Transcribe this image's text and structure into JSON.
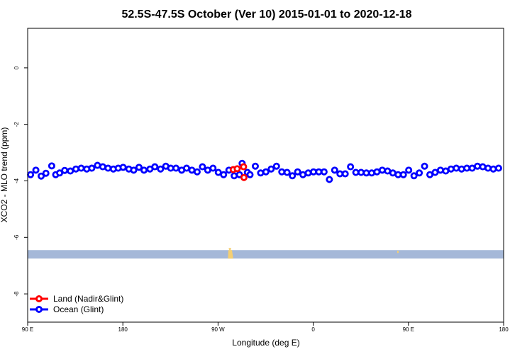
{
  "chart_data": {
    "type": "scatter",
    "title": "52.5S-47.5S October (Ver 10)   2015-01-01 to 2020-12-18",
    "xlabel": "Longitude (deg E)",
    "ylabel": "XCO2 - MLO trend (ppm)",
    "xlim": [
      90,
      450
    ],
    "ylim": [
      -9,
      1.4
    ],
    "x_ticks": [
      {
        "value": 90,
        "label": "90 E"
      },
      {
        "value": 162,
        "label": "180"
      },
      {
        "value": 234,
        "label": "90 W"
      },
      {
        "value": 306,
        "label": "0"
      },
      {
        "value": 378,
        "label": "90 E"
      },
      {
        "value": 450,
        "label": "180"
      }
    ],
    "y_ticks": [
      {
        "value": 0,
        "label": "0"
      },
      {
        "value": -2,
        "label": "-2"
      },
      {
        "value": -4,
        "label": "-4"
      },
      {
        "value": -6,
        "label": "-6"
      },
      {
        "value": -8,
        "label": "-8"
      }
    ],
    "grid": false,
    "legend_position": "bottom-left",
    "series": [
      {
        "name": "Land (Nadir&Glint)",
        "color": "#ff0000",
        "points": [
          [
            245.5,
            -3.6
          ],
          [
            248.5,
            -3.57
          ],
          [
            253.3,
            -3.5
          ],
          [
            253.6,
            -3.88
          ]
        ]
      },
      {
        "name": "Ocean (Glint)",
        "color": "#0000ff",
        "points": [
          [
            92.2,
            -3.78
          ],
          [
            96.2,
            -3.62
          ],
          [
            100.2,
            -3.83
          ],
          [
            103.8,
            -3.73
          ],
          [
            108.2,
            -3.47
          ],
          [
            111.2,
            -3.78
          ],
          [
            114.2,
            -3.72
          ],
          [
            118.0,
            -3.63
          ],
          [
            122.3,
            -3.65
          ],
          [
            126.5,
            -3.58
          ],
          [
            130.5,
            -3.55
          ],
          [
            134.7,
            -3.58
          ],
          [
            138.5,
            -3.55
          ],
          [
            142.8,
            -3.45
          ],
          [
            146.8,
            -3.5
          ],
          [
            150.8,
            -3.55
          ],
          [
            154.8,
            -3.58
          ],
          [
            158.5,
            -3.55
          ],
          [
            162.2,
            -3.52
          ],
          [
            166.5,
            -3.58
          ],
          [
            170.2,
            -3.62
          ],
          [
            174.2,
            -3.52
          ],
          [
            178.0,
            -3.62
          ],
          [
            182.5,
            -3.58
          ],
          [
            186.2,
            -3.5
          ],
          [
            190.5,
            -3.58
          ],
          [
            194.5,
            -3.48
          ],
          [
            198.2,
            -3.55
          ],
          [
            202.2,
            -3.55
          ],
          [
            206.5,
            -3.62
          ],
          [
            210.2,
            -3.55
          ],
          [
            214.2,
            -3.62
          ],
          [
            218.2,
            -3.68
          ],
          [
            222.2,
            -3.5
          ],
          [
            226.2,
            -3.62
          ],
          [
            230.2,
            -3.55
          ],
          [
            234.2,
            -3.7
          ],
          [
            238.2,
            -3.78
          ],
          [
            242.2,
            -3.62
          ],
          [
            246.2,
            -3.82
          ],
          [
            250.2,
            -3.78
          ],
          [
            252.2,
            -3.38
          ],
          [
            256.2,
            -3.7
          ],
          [
            258.2,
            -3.78
          ],
          [
            262.2,
            -3.48
          ],
          [
            266.2,
            -3.72
          ],
          [
            270.2,
            -3.68
          ],
          [
            274.2,
            -3.58
          ],
          [
            278.2,
            -3.48
          ],
          [
            282.2,
            -3.68
          ],
          [
            286.2,
            -3.7
          ],
          [
            290.2,
            -3.82
          ],
          [
            294.2,
            -3.68
          ],
          [
            298.2,
            -3.78
          ],
          [
            302.2,
            -3.72
          ],
          [
            306.2,
            -3.68
          ],
          [
            310.2,
            -3.68
          ],
          [
            314.2,
            -3.68
          ],
          [
            318.2,
            -3.95
          ],
          [
            322.2,
            -3.62
          ],
          [
            326.2,
            -3.75
          ],
          [
            330.2,
            -3.75
          ],
          [
            334.2,
            -3.5
          ],
          [
            338.2,
            -3.7
          ],
          [
            342.2,
            -3.7
          ],
          [
            346.2,
            -3.72
          ],
          [
            350.2,
            -3.72
          ],
          [
            354.2,
            -3.68
          ],
          [
            358.2,
            -3.62
          ],
          [
            362.2,
            -3.65
          ],
          [
            366.2,
            -3.72
          ],
          [
            370.2,
            -3.78
          ],
          [
            374.2,
            -3.78
          ],
          [
            378.2,
            -3.62
          ],
          [
            382.2,
            -3.82
          ],
          [
            386.2,
            -3.72
          ],
          [
            390.2,
            -3.48
          ],
          [
            394.2,
            -3.78
          ],
          [
            398.2,
            -3.7
          ],
          [
            402.2,
            -3.62
          ],
          [
            406.2,
            -3.65
          ],
          [
            410.2,
            -3.58
          ],
          [
            414.2,
            -3.55
          ],
          [
            418.2,
            -3.58
          ],
          [
            422.2,
            -3.55
          ],
          [
            426.2,
            -3.55
          ],
          [
            430.2,
            -3.48
          ],
          [
            434.2,
            -3.5
          ],
          [
            438.2,
            -3.55
          ],
          [
            442.2,
            -3.58
          ],
          [
            446.2,
            -3.55
          ]
        ]
      }
    ],
    "background_band": {
      "ocean_color": "#a5b8d8",
      "land_color": "#f5cf72",
      "y_range": [
        -6.75,
        -6.45
      ]
    }
  }
}
